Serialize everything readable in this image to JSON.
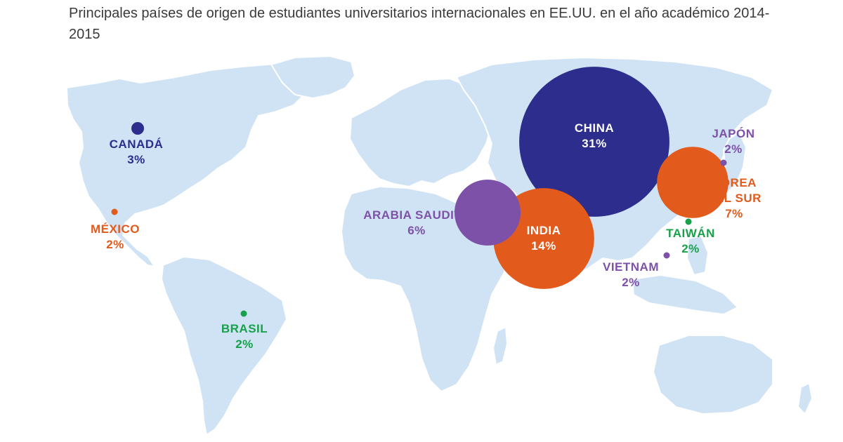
{
  "title": "Principales países de origen de estudiantes universitarios internacionales en EE.UU. en el año académico 2014-2015",
  "colors": {
    "land": "#cfe3f4",
    "blue": "#2c2d8c",
    "orange": "#e25a1c",
    "purple": "#7d51a8",
    "green": "#18a04a"
  },
  "countries": [
    {
      "name": "CHINA",
      "percent": "31%",
      "value": 31,
      "color": "blue"
    },
    {
      "name": "INDIA",
      "percent": "14%",
      "value": 14,
      "color": "orange"
    },
    {
      "name": "COREA DEL SUR",
      "name_line1": "COREA",
      "name_line2": "DEL SUR",
      "percent": "7%",
      "value": 7,
      "color": "orange"
    },
    {
      "name": "ARABIA SAUDITA",
      "percent": "6%",
      "value": 6,
      "color": "purple"
    },
    {
      "name": "CANADÁ",
      "percent": "3%",
      "value": 3,
      "color": "blue"
    },
    {
      "name": "JAPÓN",
      "percent": "2%",
      "value": 2,
      "color": "purple"
    },
    {
      "name": "TAIWÁN",
      "percent": "2%",
      "value": 2,
      "color": "green"
    },
    {
      "name": "VIETNAM",
      "percent": "2%",
      "value": 2,
      "color": "purple"
    },
    {
      "name": "MÉXICO",
      "percent": "2%",
      "value": 2,
      "color": "orange"
    },
    {
      "name": "BRASIL",
      "percent": "2%",
      "value": 2,
      "color": "green"
    }
  ]
}
